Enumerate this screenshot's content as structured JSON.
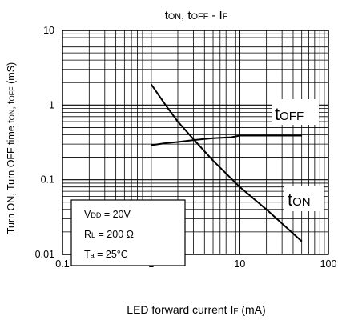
{
  "chart_data": {
    "type": "line",
    "title": {
      "a": "t",
      "a_sub": "ON",
      "b": ", t",
      "b_sub": "OFF",
      "c": " - I",
      "c_sub": "F"
    },
    "xlabel": {
      "main": "LED forward current I",
      "sub": "F",
      "unit": " (mA)"
    },
    "ylabel": {
      "main": "Turn ON, Turn OFF time t",
      "sub1": "ON",
      "mid": ", t",
      "sub2": "OFF",
      "unit": " (mS)"
    },
    "x_scale": "log",
    "y_scale": "log",
    "xlim": [
      0.1,
      100
    ],
    "ylim": [
      0.01,
      10
    ],
    "x_ticks": [
      {
        "value": 0.1,
        "label": "0.1"
      },
      {
        "value": 1,
        "label": "1"
      },
      {
        "value": 10,
        "label": "10"
      },
      {
        "value": 100,
        "label": "100"
      }
    ],
    "y_ticks": [
      {
        "value": 10,
        "label": "10"
      },
      {
        "value": 1,
        "label": "1"
      },
      {
        "value": 0.1,
        "label": "0.1"
      },
      {
        "value": 0.01,
        "label": "0.01"
      }
    ],
    "grid": true,
    "series": [
      {
        "name": "tOFF",
        "label_main": "t",
        "label_sub": "OFF",
        "x": [
          1,
          1.5,
          2,
          3,
          5,
          8,
          10,
          20,
          50
        ],
        "y": [
          0.29,
          0.31,
          0.32,
          0.34,
          0.36,
          0.37,
          0.39,
          0.39,
          0.39
        ]
      },
      {
        "name": "tON",
        "label_main": "t",
        "label_sub": "ON",
        "x": [
          1,
          1.5,
          2,
          3,
          5,
          10,
          20,
          50
        ],
        "y": [
          1.9,
          0.95,
          0.6,
          0.35,
          0.18,
          0.08,
          0.04,
          0.015
        ]
      }
    ],
    "conditions": [
      "V_DD = 20V",
      "R_L = 200 Ω",
      "T_a = 25°C"
    ],
    "conditions_parts": [
      {
        "main": "V",
        "sub": "DD",
        "rest": " = 20V"
      },
      {
        "main": "R",
        "sub": "L",
        "rest": " = 200 Ω"
      },
      {
        "main": "T",
        "sub": "a",
        "rest": " = 25°C"
      }
    ],
    "colors": {
      "line": "#000000",
      "grid": "#000000",
      "background": "#ffffff"
    }
  }
}
